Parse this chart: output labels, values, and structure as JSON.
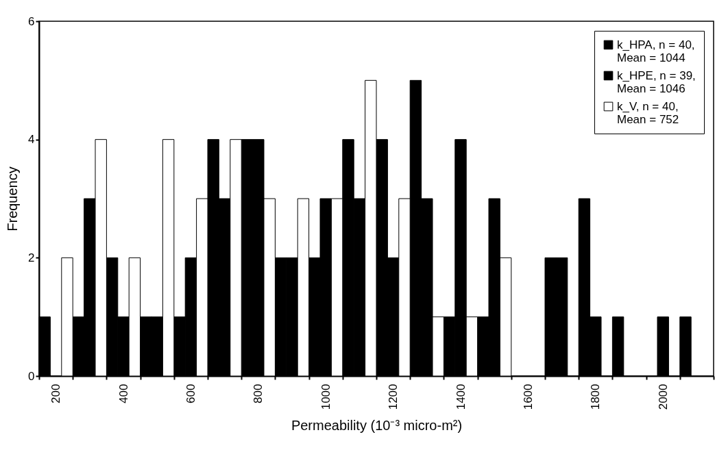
{
  "chart_data": {
    "type": "bar",
    "xlabel": "Permeability (10⁻³ micro-m²)",
    "ylabel": "Frequency",
    "categories": [
      "200",
      null,
      "400",
      null,
      "600",
      null,
      "800",
      null,
      "1000",
      null,
      "1200",
      null,
      "1400",
      null,
      "1600",
      null,
      "1800",
      null,
      "2000",
      null
    ],
    "series": [
      {
        "name": "k_HPA, n = 40, Mean = 1044",
        "color": "#000000",
        "values": [
          1,
          1,
          2,
          1,
          1,
          4,
          4,
          2,
          2,
          4,
          4,
          5,
          1,
          1,
          0,
          2,
          3,
          1,
          0,
          1
        ]
      },
      {
        "name": "k_HPE, n = 39, Mean = 1046",
        "color": "#000000",
        "values": [
          0,
          3,
          1,
          1,
          2,
          3,
          4,
          2,
          3,
          3,
          2,
          3,
          4,
          3,
          0,
          2,
          1,
          0,
          1,
          0
        ]
      },
      {
        "name": "k_V, n = 40, Mean = 752",
        "color": "#ffffff",
        "values": [
          2,
          4,
          2,
          4,
          3,
          4,
          3,
          3,
          3,
          5,
          3,
          1,
          1,
          2,
          0,
          0,
          0,
          0,
          0,
          0
        ]
      }
    ],
    "ylim": [
      0,
      6
    ],
    "yticks": [
      0,
      2,
      4,
      6
    ],
    "grid": false,
    "legend": "top right"
  }
}
